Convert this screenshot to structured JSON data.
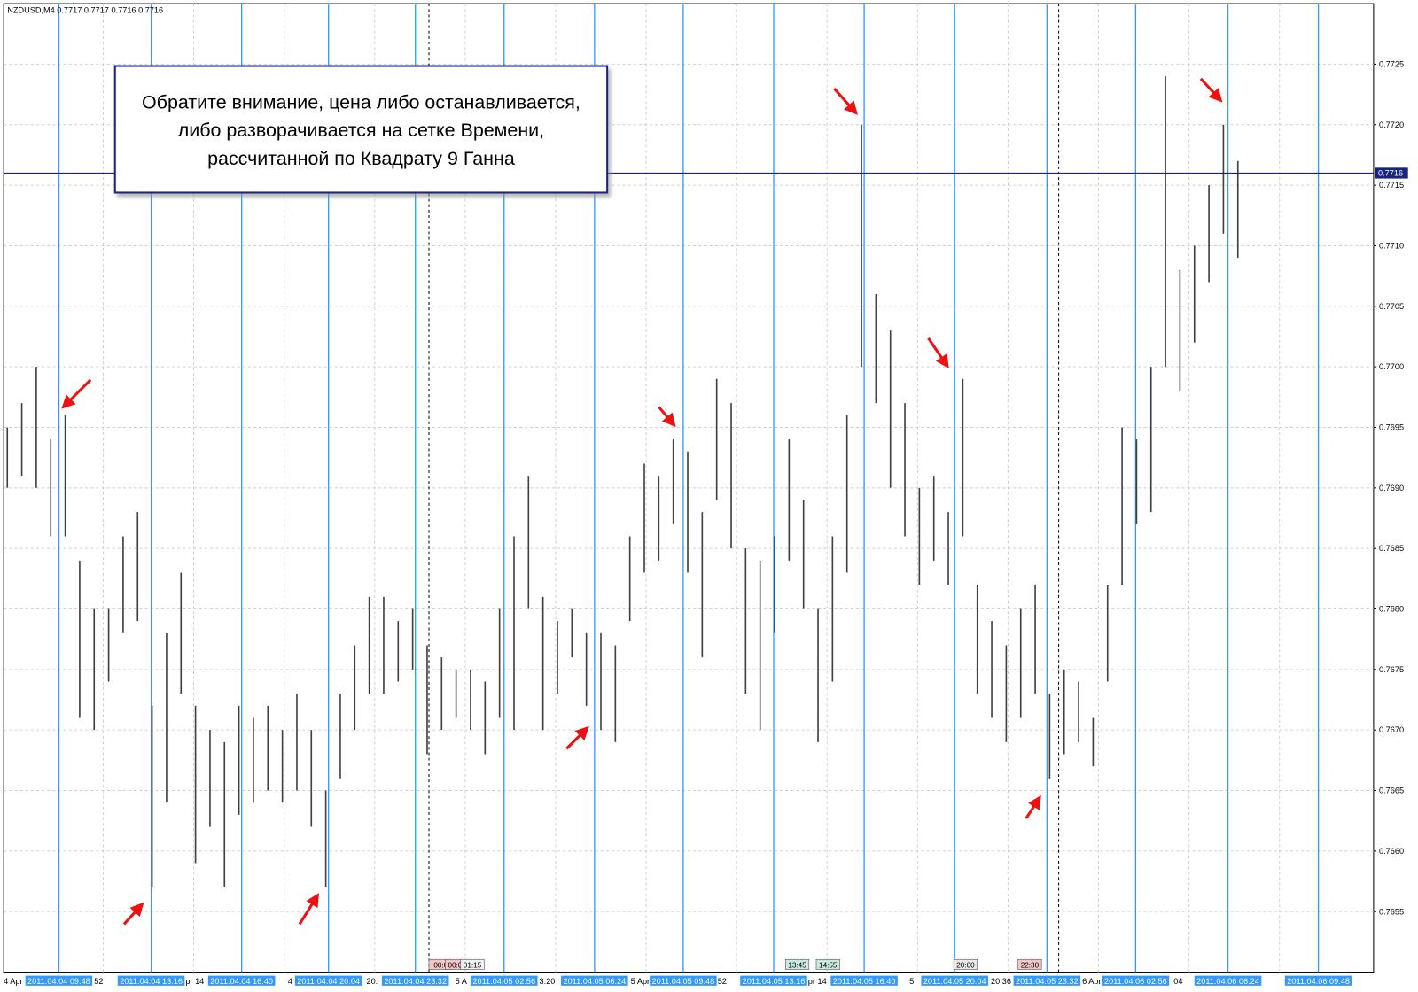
{
  "chart_data": {
    "type": "range",
    "title": "NZDUSD,M4 0.7717 0.7717 0.7716 0.7716",
    "annotation": [
      "Обратите внимание, цена либо останавливается,",
      "либо разворачивается на сетке Времени,",
      "рассчитанной по Квадрату 9 Ганна"
    ],
    "color": "#404040",
    "high": [
      0.7695,
      0.7697,
      0.77,
      0.7694,
      0.7696,
      0.7684,
      0.768,
      0.768,
      0.7686,
      0.7688,
      0.7672,
      0.7678,
      0.7683,
      0.7672,
      0.767,
      0.7669,
      0.7672,
      0.7671,
      0.7672,
      0.767,
      0.7673,
      0.767,
      0.7665,
      0.7673,
      0.7677,
      0.7681,
      0.7681,
      0.7679,
      0.768,
      0.7677,
      0.7676,
      0.7675,
      0.7675,
      0.7674,
      0.768,
      0.7686,
      0.7691,
      0.7681,
      0.7679,
      0.768,
      0.7678,
      0.7678,
      0.7677,
      0.7686,
      0.7692,
      0.7691,
      0.7694,
      0.7693,
      0.7688,
      0.7699,
      0.7697,
      0.7685,
      0.7684,
      0.7686,
      0.7694,
      0.7689,
      0.768,
      0.7686,
      0.7696,
      0.772,
      0.7706,
      0.7703,
      0.7697,
      0.769,
      0.7691,
      0.7688,
      0.7699,
      0.7682,
      0.7679,
      0.7677,
      0.768,
      0.7682,
      0.7673,
      0.7675,
      0.7674,
      0.7671,
      0.7682,
      0.7695,
      0.7694,
      0.77,
      0.7724,
      0.7708,
      0.771,
      0.7715,
      0.772,
      0.7717
    ],
    "low": [
      0.769,
      0.7691,
      0.769,
      0.7686,
      0.7686,
      0.7671,
      0.767,
      0.7674,
      0.7678,
      0.7679,
      0.7657,
      0.7664,
      0.7673,
      0.7659,
      0.7662,
      0.7657,
      0.7663,
      0.7664,
      0.7665,
      0.7664,
      0.7665,
      0.7662,
      0.7657,
      0.7666,
      0.767,
      0.7673,
      0.7673,
      0.7674,
      0.7675,
      0.7668,
      0.767,
      0.7671,
      0.767,
      0.7668,
      0.7671,
      0.767,
      0.768,
      0.767,
      0.7673,
      0.7676,
      0.7672,
      0.767,
      0.7669,
      0.7679,
      0.7683,
      0.7684,
      0.7687,
      0.7683,
      0.7676,
      0.7689,
      0.7685,
      0.7673,
      0.767,
      0.7678,
      0.7684,
      0.768,
      0.7669,
      0.7674,
      0.7683,
      0.77,
      0.7697,
      0.769,
      0.7686,
      0.7682,
      0.7684,
      0.7682,
      0.7686,
      0.7673,
      0.7671,
      0.7669,
      0.7671,
      0.7673,
      0.7666,
      0.7668,
      0.7669,
      0.7667,
      0.7674,
      0.7682,
      0.7687,
      0.7688,
      0.77,
      0.7698,
      0.7702,
      0.7707,
      0.7711,
      0.7709
    ],
    "ylim": [
      0.765,
      0.773
    ],
    "yticks": [
      0.7655,
      {
        "value": 0.766,
        "label": "0.7660"
      },
      0.7665,
      {
        "value": 0.767,
        "label": "0.7670"
      },
      0.7675,
      {
        "value": 0.768,
        "label": "0.7680"
      },
      0.7685,
      {
        "value": 0.769,
        "label": "0.7690"
      },
      0.7695,
      {
        "value": 0.77,
        "label": "0.7700"
      },
      0.7705,
      {
        "value": 0.771,
        "label": "0.7710"
      },
      0.7715,
      {
        "value": 0.772,
        "label": "0.7720"
      },
      0.7725
    ],
    "grid": true,
    "current_price": {
      "value": 0.7716,
      "label": "0.7716"
    },
    "time_lines": {
      "color": "#3399ff",
      "labels": [
        "2011.04.04 09:48",
        "2011.04.04 13:16",
        "2011.04.04 16:40",
        "2011.04.04 20:04",
        "2011.04.04 23:32",
        "2011.04.05 02:56",
        "2011.04.05 06:24",
        "2011.04.05 09:48",
        "2011.04.05 13:16",
        "2011.04.05 16:40",
        "2011.04.05 20:04",
        "2011.04.05 23:32",
        "2011.04.06 02:56",
        "2011.04.06 06:24",
        "2011.04.06 09:48"
      ]
    },
    "axis_fragments": [
      "4 Apr",
      "52",
      "pr 14",
      "4",
      "20:",
      "5 A",
      "3:20",
      "5 Apr",
      "52",
      "pr 14",
      "5",
      "20:36",
      "6 Apr",
      "04"
    ],
    "markers": [
      "00:0",
      "00:00",
      "01:15",
      "13:45",
      "14:55",
      "20:00",
      "22:30"
    ]
  }
}
